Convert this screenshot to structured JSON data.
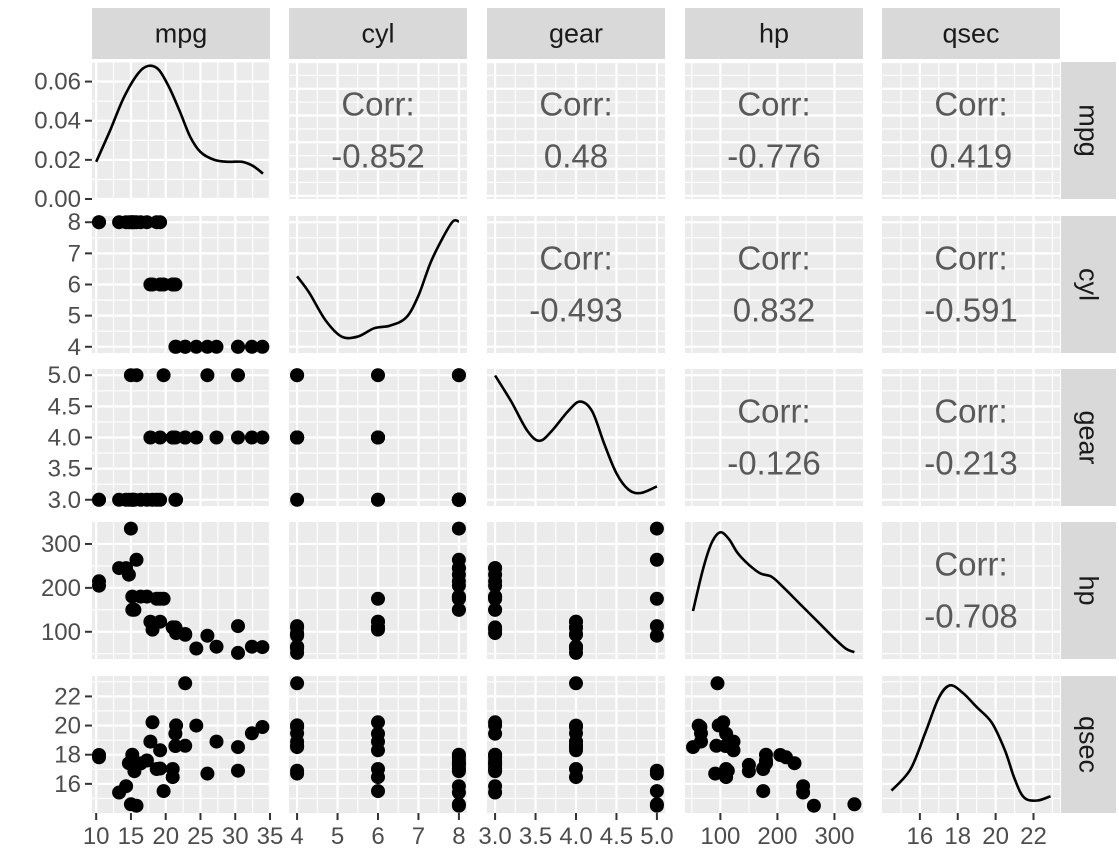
{
  "chart_data": {
    "type": "scatter",
    "variables": [
      "mpg",
      "cyl",
      "gear",
      "hp",
      "qsec"
    ],
    "axes": {
      "mpg": {
        "range": [
          9.4,
          35.0
        ],
        "ticks": [
          10,
          15,
          20,
          25,
          30,
          35
        ],
        "tick_labels": [
          "10",
          "15",
          "20",
          "25",
          "30",
          "35"
        ]
      },
      "cyl": {
        "range": [
          3.8,
          8.2
        ],
        "ticks": [
          4,
          5,
          6,
          7,
          8
        ],
        "tick_labels": [
          "4",
          "5",
          "6",
          "7",
          "8"
        ]
      },
      "gear": {
        "range": [
          2.9,
          5.1
        ],
        "ticks": [
          3.0,
          3.5,
          4.0,
          4.5,
          5.0
        ],
        "tick_labels": [
          "3.0",
          "3.5",
          "4.0",
          "4.5",
          "5.0"
        ]
      },
      "hp": {
        "range": [
          38,
          350
        ],
        "ticks": [
          100,
          200,
          300
        ],
        "tick_labels": [
          "100",
          "200",
          "300"
        ]
      },
      "qsec": {
        "range": [
          14.0,
          23.4
        ],
        "ticks": [
          16,
          18,
          20,
          22
        ],
        "tick_labels": [
          "16",
          "18",
          "20",
          "22"
        ]
      }
    },
    "density_axis": {
      "range": [
        0.0,
        0.07
      ],
      "ticks": [
        0.0,
        0.02,
        0.04,
        0.06
      ],
      "tick_labels": [
        "0.00",
        "0.02",
        "0.04",
        "0.06"
      ]
    },
    "correlations": [
      {
        "row": "mpg",
        "col": "cyl",
        "label": "Corr:",
        "value": "-0.852"
      },
      {
        "row": "mpg",
        "col": "gear",
        "label": "Corr:",
        "value": "0.48"
      },
      {
        "row": "mpg",
        "col": "hp",
        "label": "Corr:",
        "value": "-0.776"
      },
      {
        "row": "mpg",
        "col": "qsec",
        "label": "Corr:",
        "value": "0.419"
      },
      {
        "row": "cyl",
        "col": "gear",
        "label": "Corr:",
        "value": "-0.493"
      },
      {
        "row": "cyl",
        "col": "hp",
        "label": "Corr:",
        "value": "0.832"
      },
      {
        "row": "cyl",
        "col": "qsec",
        "label": "Corr:",
        "value": "-0.591"
      },
      {
        "row": "gear",
        "col": "hp",
        "label": "Corr:",
        "value": "-0.126"
      },
      {
        "row": "gear",
        "col": "qsec",
        "label": "Corr:",
        "value": "-0.213"
      },
      {
        "row": "hp",
        "col": "qsec",
        "label": "Corr:",
        "value": "-0.708"
      }
    ],
    "densities": {
      "mpg": [
        [
          10.0,
          0.019
        ],
        [
          12.0,
          0.035
        ],
        [
          14.0,
          0.052
        ],
        [
          16.0,
          0.064
        ],
        [
          17.5,
          0.068
        ],
        [
          19.0,
          0.066
        ],
        [
          20.5,
          0.057
        ],
        [
          22.0,
          0.045
        ],
        [
          23.5,
          0.032
        ],
        [
          25.0,
          0.024
        ],
        [
          27.0,
          0.02
        ],
        [
          29.0,
          0.019
        ],
        [
          31.0,
          0.019
        ],
        [
          32.5,
          0.017
        ],
        [
          34.0,
          0.013
        ]
      ],
      "cyl": [
        [
          4.0,
          0.88
        ],
        [
          4.3,
          0.82
        ],
        [
          4.7,
          0.72
        ],
        [
          5.1,
          0.66
        ],
        [
          5.5,
          0.66
        ],
        [
          5.9,
          0.69
        ],
        [
          6.3,
          0.7
        ],
        [
          6.7,
          0.73
        ],
        [
          7.0,
          0.81
        ],
        [
          7.3,
          0.93
        ],
        [
          7.6,
          1.02
        ],
        [
          7.85,
          1.08
        ],
        [
          8.0,
          1.08
        ]
      ],
      "gear": [
        [
          3.0,
          1.0
        ],
        [
          3.2,
          0.92
        ],
        [
          3.4,
          0.83
        ],
        [
          3.55,
          0.8
        ],
        [
          3.7,
          0.83
        ],
        [
          3.9,
          0.89
        ],
        [
          4.05,
          0.92
        ],
        [
          4.2,
          0.89
        ],
        [
          4.35,
          0.79
        ],
        [
          4.5,
          0.7
        ],
        [
          4.65,
          0.65
        ],
        [
          4.8,
          0.64
        ],
        [
          5.0,
          0.66
        ]
      ],
      "hp": [
        [
          52,
          0.004
        ],
        [
          70,
          0.0065
        ],
        [
          85,
          0.008
        ],
        [
          100,
          0.0086
        ],
        [
          115,
          0.0082
        ],
        [
          130,
          0.0074
        ],
        [
          150,
          0.0067
        ],
        [
          170,
          0.0062
        ],
        [
          190,
          0.006
        ],
        [
          210,
          0.0054
        ],
        [
          240,
          0.0044
        ],
        [
          270,
          0.0034
        ],
        [
          300,
          0.0024
        ],
        [
          320,
          0.0018
        ],
        [
          335,
          0.0016
        ]
      ],
      "qsec": [
        [
          14.5,
          0.056
        ],
        [
          15.5,
          0.09
        ],
        [
          16.3,
          0.15
        ],
        [
          17.0,
          0.205
        ],
        [
          17.6,
          0.225
        ],
        [
          18.3,
          0.212
        ],
        [
          19.0,
          0.19
        ],
        [
          19.8,
          0.165
        ],
        [
          20.5,
          0.12
        ],
        [
          21.0,
          0.075
        ],
        [
          21.5,
          0.045
        ],
        [
          22.2,
          0.04
        ],
        [
          22.9,
          0.047
        ]
      ]
    },
    "density_ranges": {
      "cyl": [
        0.6,
        1.1
      ],
      "gear": [
        0.6,
        1.02
      ],
      "hp": [
        0.0012,
        0.0092
      ],
      "qsec": [
        0.02,
        0.24
      ]
    },
    "observations": [
      {
        "mpg": 21.0,
        "cyl": 6,
        "gear": 4,
        "hp": 110,
        "qsec": 16.46
      },
      {
        "mpg": 21.0,
        "cyl": 6,
        "gear": 4,
        "hp": 110,
        "qsec": 17.02
      },
      {
        "mpg": 22.8,
        "cyl": 4,
        "gear": 4,
        "hp": 93,
        "qsec": 18.61
      },
      {
        "mpg": 21.4,
        "cyl": 6,
        "gear": 3,
        "hp": 110,
        "qsec": 19.44
      },
      {
        "mpg": 18.7,
        "cyl": 8,
        "gear": 3,
        "hp": 175,
        "qsec": 17.02
      },
      {
        "mpg": 18.1,
        "cyl": 6,
        "gear": 3,
        "hp": 105,
        "qsec": 20.22
      },
      {
        "mpg": 14.3,
        "cyl": 8,
        "gear": 3,
        "hp": 245,
        "qsec": 15.84
      },
      {
        "mpg": 24.4,
        "cyl": 4,
        "gear": 4,
        "hp": 62,
        "qsec": 20.0
      },
      {
        "mpg": 22.8,
        "cyl": 4,
        "gear": 4,
        "hp": 95,
        "qsec": 22.9
      },
      {
        "mpg": 19.2,
        "cyl": 6,
        "gear": 4,
        "hp": 123,
        "qsec": 18.3
      },
      {
        "mpg": 17.8,
        "cyl": 6,
        "gear": 4,
        "hp": 123,
        "qsec": 18.9
      },
      {
        "mpg": 16.4,
        "cyl": 8,
        "gear": 3,
        "hp": 180,
        "qsec": 17.4
      },
      {
        "mpg": 17.3,
        "cyl": 8,
        "gear": 3,
        "hp": 180,
        "qsec": 17.6
      },
      {
        "mpg": 15.2,
        "cyl": 8,
        "gear": 3,
        "hp": 180,
        "qsec": 18.0
      },
      {
        "mpg": 10.4,
        "cyl": 8,
        "gear": 3,
        "hp": 205,
        "qsec": 17.98
      },
      {
        "mpg": 10.4,
        "cyl": 8,
        "gear": 3,
        "hp": 215,
        "qsec": 17.82
      },
      {
        "mpg": 14.7,
        "cyl": 8,
        "gear": 3,
        "hp": 230,
        "qsec": 17.42
      },
      {
        "mpg": 32.4,
        "cyl": 4,
        "gear": 4,
        "hp": 66,
        "qsec": 19.47
      },
      {
        "mpg": 30.4,
        "cyl": 4,
        "gear": 4,
        "hp": 52,
        "qsec": 18.52
      },
      {
        "mpg": 33.9,
        "cyl": 4,
        "gear": 4,
        "hp": 65,
        "qsec": 19.9
      },
      {
        "mpg": 21.5,
        "cyl": 4,
        "gear": 3,
        "hp": 97,
        "qsec": 20.01
      },
      {
        "mpg": 15.5,
        "cyl": 8,
        "gear": 3,
        "hp": 150,
        "qsec": 16.87
      },
      {
        "mpg": 15.2,
        "cyl": 8,
        "gear": 3,
        "hp": 150,
        "qsec": 17.3
      },
      {
        "mpg": 13.3,
        "cyl": 8,
        "gear": 3,
        "hp": 245,
        "qsec": 15.41
      },
      {
        "mpg": 19.2,
        "cyl": 8,
        "gear": 3,
        "hp": 175,
        "qsec": 17.05
      },
      {
        "mpg": 27.3,
        "cyl": 4,
        "gear": 4,
        "hp": 66,
        "qsec": 18.9
      },
      {
        "mpg": 26.0,
        "cyl": 4,
        "gear": 5,
        "hp": 91,
        "qsec": 16.7
      },
      {
        "mpg": 30.4,
        "cyl": 4,
        "gear": 5,
        "hp": 113,
        "qsec": 16.9
      },
      {
        "mpg": 15.8,
        "cyl": 8,
        "gear": 5,
        "hp": 264,
        "qsec": 14.5
      },
      {
        "mpg": 19.7,
        "cyl": 6,
        "gear": 5,
        "hp": 175,
        "qsec": 15.5
      },
      {
        "mpg": 15.0,
        "cyl": 8,
        "gear": 5,
        "hp": 335,
        "qsec": 14.6
      },
      {
        "mpg": 21.4,
        "cyl": 4,
        "gear": 4,
        "hp": 109,
        "qsec": 18.6
      }
    ],
    "strip_labels": {
      "top": [
        "mpg",
        "cyl",
        "gear",
        "hp",
        "qsec"
      ],
      "right": [
        "mpg",
        "cyl",
        "gear",
        "hp",
        "qsec"
      ]
    },
    "colors": {
      "panel": "#ebebeb",
      "strip": "#d9d9d9",
      "mark": "#000000",
      "corr_text": "#595959"
    }
  }
}
